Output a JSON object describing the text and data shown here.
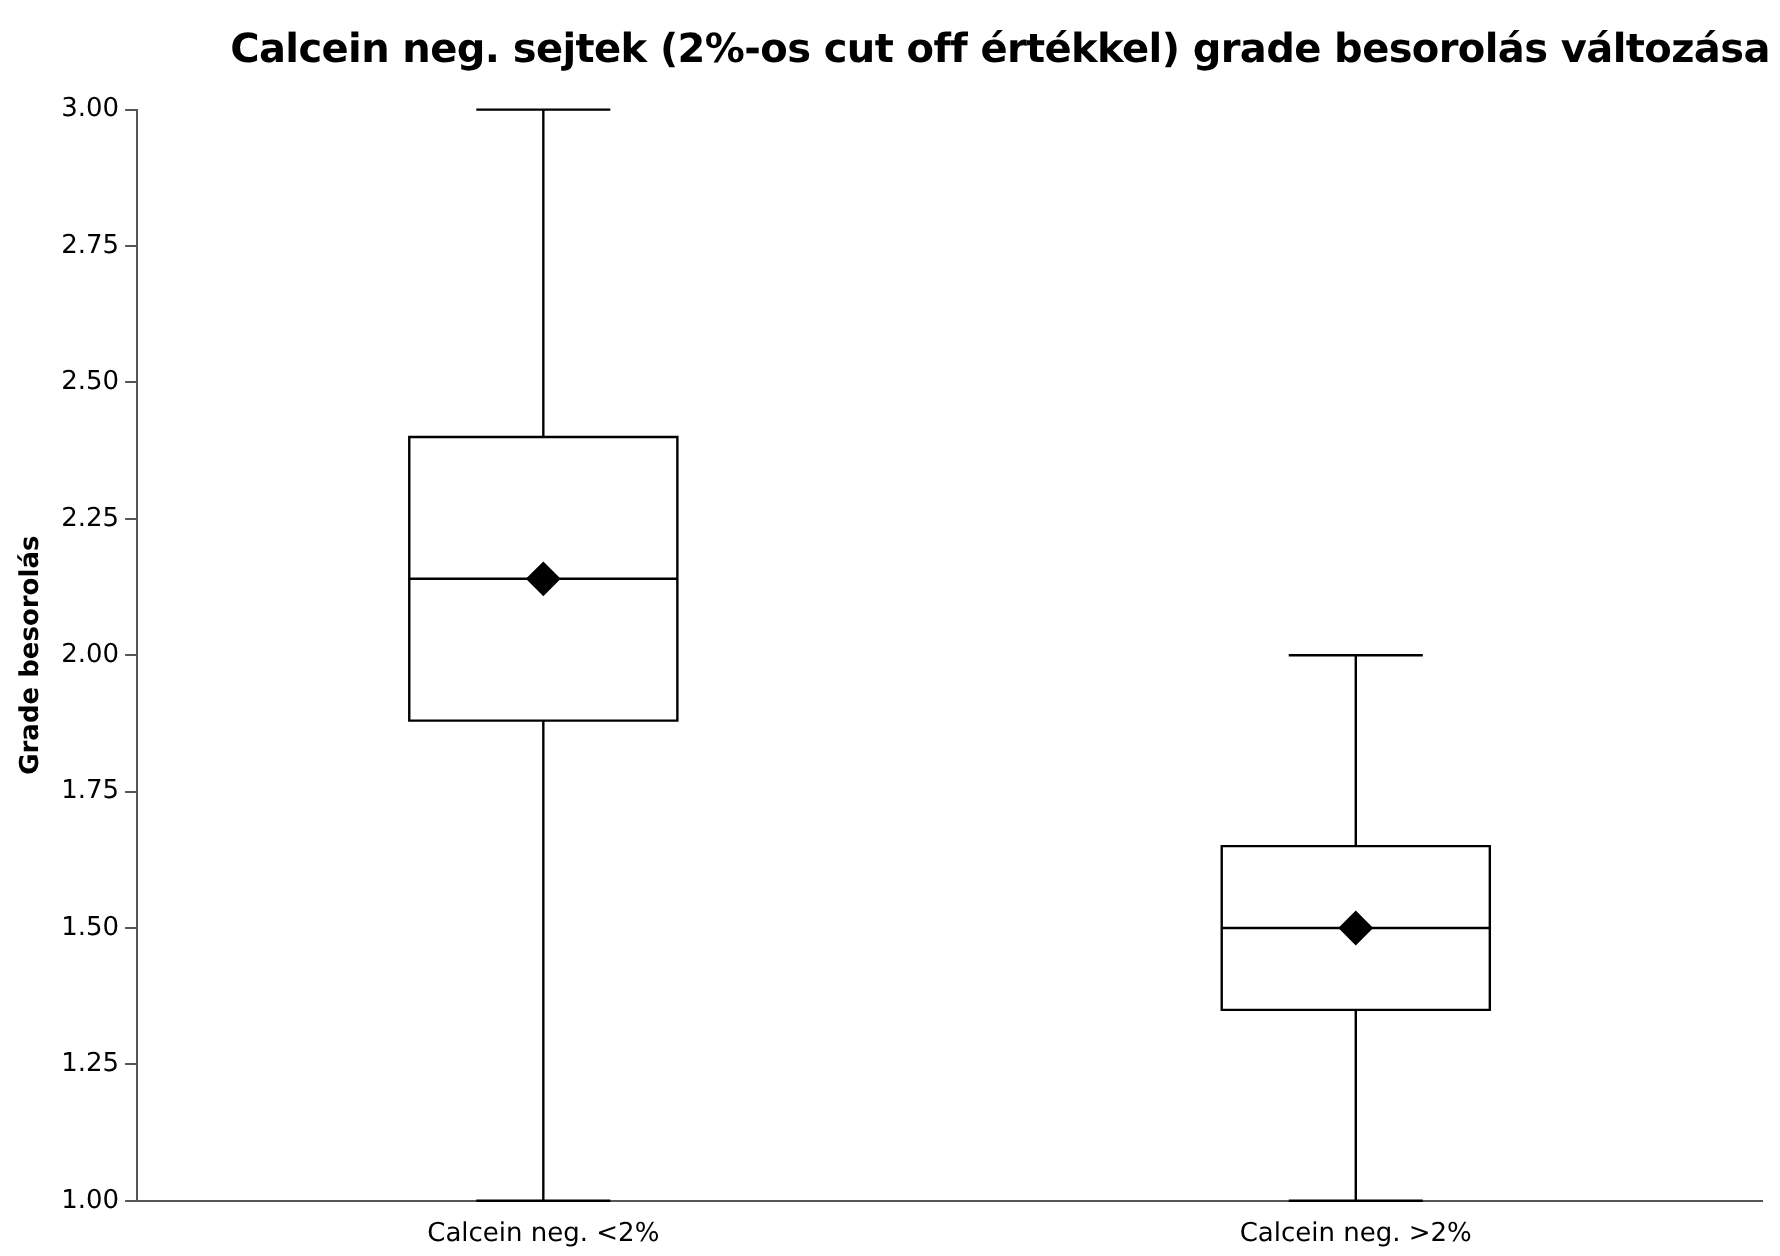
{
  "chart_data": {
    "type": "box",
    "title": "Calcein neg. sejtek (2%-os cut off értékkel) grade besorolás változása",
    "ylabel": "Grade besorolás",
    "categories": [
      "Calcein neg. <2%",
      "Calcein neg. >2%"
    ],
    "boxes": [
      {
        "low": 1.0,
        "q1": 1.88,
        "median": 2.14,
        "q3": 2.4,
        "high": 3.0,
        "mean": 2.14
      },
      {
        "low": 1.0,
        "q1": 1.35,
        "median": 1.5,
        "q3": 1.65,
        "high": 2.0,
        "mean": 1.5
      }
    ],
    "ylim": [
      1,
      3
    ],
    "yticks": [
      {
        "value": 1,
        "label": "1.00"
      },
      {
        "value": 1.25,
        "label": "1.25"
      },
      {
        "value": 1.5,
        "label": "1.50"
      },
      {
        "value": 1.75,
        "label": "1.75"
      },
      {
        "value": 2,
        "label": "2.00"
      },
      {
        "value": 2.25,
        "label": "2.25"
      },
      {
        "value": 2.5,
        "label": "2.50"
      },
      {
        "value": 2.75,
        "label": "2.75"
      },
      {
        "value": 3,
        "label": "3.00"
      }
    ],
    "grid": false,
    "marker": "diamond"
  }
}
